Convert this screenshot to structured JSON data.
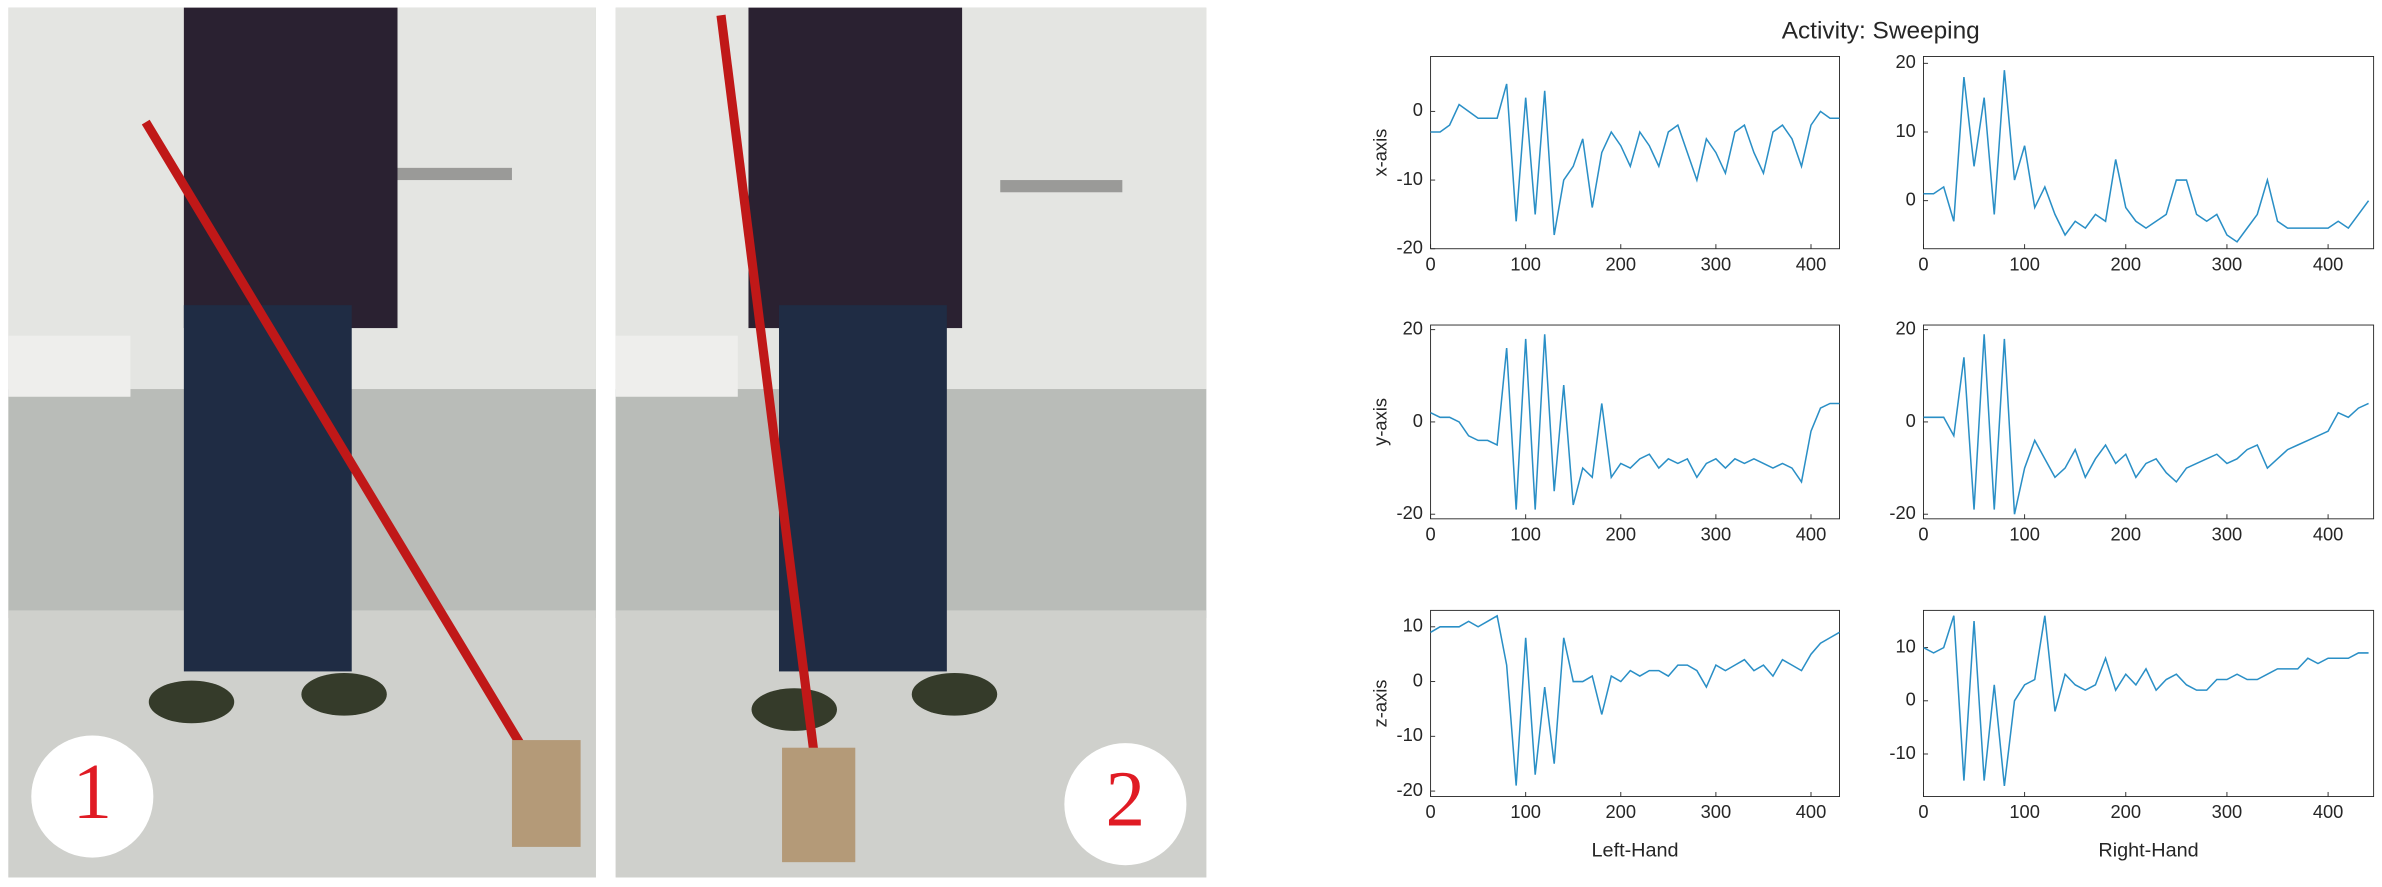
{
  "photos": [
    {
      "label": "1"
    },
    {
      "label": "2"
    }
  ],
  "figure_title": "Activity: Sweeping",
  "chart_data": [
    {
      "type": "line",
      "ylabel": "x-axis",
      "color": "#2a8fc6",
      "xlim": [
        0,
        430
      ],
      "ylim": [
        -20,
        8
      ],
      "xticks": [
        0,
        100,
        200,
        300,
        400
      ],
      "yticks": [
        -20,
        -10,
        0
      ],
      "x": [
        0,
        10,
        20,
        30,
        40,
        50,
        60,
        70,
        80,
        90,
        100,
        110,
        120,
        130,
        140,
        150,
        160,
        170,
        180,
        190,
        200,
        210,
        220,
        230,
        240,
        250,
        260,
        270,
        280,
        290,
        300,
        310,
        320,
        330,
        340,
        350,
        360,
        370,
        380,
        390,
        400,
        410,
        420,
        430
      ],
      "values": [
        -3,
        -3,
        -2,
        1,
        0,
        -1,
        -1,
        -1,
        4,
        -16,
        2,
        -15,
        3,
        -18,
        -10,
        -8,
        -4,
        -14,
        -6,
        -3,
        -5,
        -8,
        -3,
        -5,
        -8,
        -3,
        -2,
        -6,
        -10,
        -4,
        -6,
        -9,
        -3,
        -2,
        -6,
        -9,
        -3,
        -2,
        -4,
        -8,
        -2,
        0,
        -1,
        -1
      ]
    },
    {
      "type": "line",
      "color": "#2a8fc6",
      "xlim": [
        0,
        445
      ],
      "ylim": [
        -7,
        21
      ],
      "xticks": [
        0,
        100,
        200,
        300,
        400
      ],
      "yticks": [
        0,
        10,
        20
      ],
      "x": [
        0,
        10,
        20,
        30,
        40,
        50,
        60,
        70,
        80,
        90,
        100,
        110,
        120,
        130,
        140,
        150,
        160,
        170,
        180,
        190,
        200,
        210,
        220,
        230,
        240,
        250,
        260,
        270,
        280,
        290,
        300,
        310,
        320,
        330,
        340,
        350,
        360,
        370,
        380,
        390,
        400,
        410,
        420,
        430,
        440
      ],
      "values": [
        1,
        1,
        2,
        -3,
        18,
        5,
        15,
        -2,
        19,
        3,
        8,
        -1,
        2,
        -2,
        -5,
        -3,
        -4,
        -2,
        -3,
        6,
        -1,
        -3,
        -4,
        -3,
        -2,
        3,
        3,
        -2,
        -3,
        -2,
        -5,
        -6,
        -4,
        -2,
        3,
        -3,
        -4,
        -4,
        -4,
        -4,
        -4,
        -3,
        -4,
        -2,
        0
      ]
    },
    {
      "type": "line",
      "ylabel": "y-axis",
      "color": "#2a8fc6",
      "xlim": [
        0,
        430
      ],
      "ylim": [
        -21,
        21
      ],
      "xticks": [
        0,
        100,
        200,
        300,
        400
      ],
      "yticks": [
        -20,
        0,
        20
      ],
      "x": [
        0,
        10,
        20,
        30,
        40,
        50,
        60,
        70,
        80,
        90,
        100,
        110,
        120,
        130,
        140,
        150,
        160,
        170,
        180,
        190,
        200,
        210,
        220,
        230,
        240,
        250,
        260,
        270,
        280,
        290,
        300,
        310,
        320,
        330,
        340,
        350,
        360,
        370,
        380,
        390,
        400,
        410,
        420,
        430
      ],
      "values": [
        2,
        1,
        1,
        0,
        -3,
        -4,
        -4,
        -5,
        16,
        -19,
        18,
        -19,
        19,
        -15,
        8,
        -18,
        -10,
        -12,
        4,
        -12,
        -9,
        -10,
        -8,
        -7,
        -10,
        -8,
        -9,
        -8,
        -12,
        -9,
        -8,
        -10,
        -8,
        -9,
        -8,
        -9,
        -10,
        -9,
        -10,
        -13,
        -2,
        3,
        4,
        4
      ]
    },
    {
      "type": "line",
      "color": "#2a8fc6",
      "xlim": [
        0,
        445
      ],
      "ylim": [
        -21,
        21
      ],
      "xticks": [
        0,
        100,
        200,
        300,
        400
      ],
      "yticks": [
        -20,
        0,
        20
      ],
      "x": [
        0,
        10,
        20,
        30,
        40,
        50,
        60,
        70,
        80,
        90,
        100,
        110,
        120,
        130,
        140,
        150,
        160,
        170,
        180,
        190,
        200,
        210,
        220,
        230,
        240,
        250,
        260,
        270,
        280,
        290,
        300,
        310,
        320,
        330,
        340,
        350,
        360,
        370,
        380,
        390,
        400,
        410,
        420,
        430,
        440
      ],
      "values": [
        1,
        1,
        1,
        -3,
        14,
        -19,
        19,
        -19,
        18,
        -20,
        -10,
        -4,
        -8,
        -12,
        -10,
        -6,
        -12,
        -8,
        -5,
        -9,
        -7,
        -12,
        -9,
        -8,
        -11,
        -13,
        -10,
        -9,
        -8,
        -7,
        -9,
        -8,
        -6,
        -5,
        -10,
        -8,
        -6,
        -5,
        -4,
        -3,
        -2,
        2,
        1,
        3,
        4
      ]
    },
    {
      "type": "line",
      "ylabel": "z-axis",
      "xlabel": "Left-Hand",
      "color": "#2a8fc6",
      "xlim": [
        0,
        430
      ],
      "ylim": [
        -21,
        13
      ],
      "xticks": [
        0,
        100,
        200,
        300,
        400
      ],
      "yticks": [
        -20,
        -10,
        0,
        10
      ],
      "x": [
        0,
        10,
        20,
        30,
        40,
        50,
        60,
        70,
        80,
        90,
        100,
        110,
        120,
        130,
        140,
        150,
        160,
        170,
        180,
        190,
        200,
        210,
        220,
        230,
        240,
        250,
        260,
        270,
        280,
        290,
        300,
        310,
        320,
        330,
        340,
        350,
        360,
        370,
        380,
        390,
        400,
        410,
        420,
        430
      ],
      "values": [
        9,
        10,
        10,
        10,
        11,
        10,
        11,
        12,
        3,
        -19,
        8,
        -17,
        -1,
        -15,
        8,
        0,
        0,
        1,
        -6,
        1,
        0,
        2,
        1,
        2,
        2,
        1,
        3,
        3,
        2,
        -1,
        3,
        2,
        3,
        4,
        2,
        3,
        1,
        4,
        3,
        2,
        5,
        7,
        8,
        9
      ]
    },
    {
      "type": "line",
      "xlabel": "Right-Hand",
      "color": "#2a8fc6",
      "xlim": [
        0,
        445
      ],
      "ylim": [
        -18,
        17
      ],
      "xticks": [
        0,
        100,
        200,
        300,
        400
      ],
      "yticks": [
        -10,
        0,
        10
      ],
      "x": [
        0,
        10,
        20,
        30,
        40,
        50,
        60,
        70,
        80,
        90,
        100,
        110,
        120,
        130,
        140,
        150,
        160,
        170,
        180,
        190,
        200,
        210,
        220,
        230,
        240,
        250,
        260,
        270,
        280,
        290,
        300,
        310,
        320,
        330,
        340,
        350,
        360,
        370,
        380,
        390,
        400,
        410,
        420,
        430,
        440
      ],
      "values": [
        10,
        9,
        10,
        16,
        -15,
        15,
        -15,
        3,
        -16,
        0,
        3,
        4,
        16,
        -2,
        5,
        3,
        2,
        3,
        8,
        2,
        5,
        3,
        6,
        2,
        4,
        5,
        3,
        2,
        2,
        4,
        4,
        5,
        4,
        4,
        5,
        6,
        6,
        6,
        8,
        7,
        8,
        8,
        8,
        9,
        9
      ]
    }
  ]
}
